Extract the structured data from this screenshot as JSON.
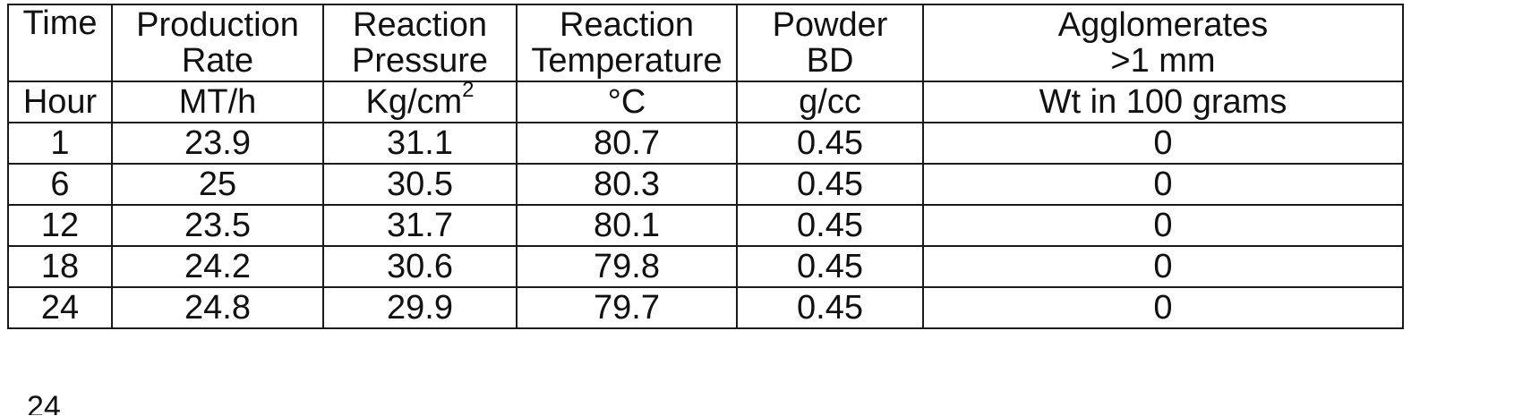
{
  "table": {
    "headers": [
      {
        "line1": "Time",
        "line2": ""
      },
      {
        "line1": "Production",
        "line2": "Rate"
      },
      {
        "line1": "Reaction",
        "line2": "Pressure"
      },
      {
        "line1": "Reaction",
        "line2": "Temperature"
      },
      {
        "line1": "Powder",
        "line2": "BD"
      },
      {
        "line1": "Agglomerates",
        "line2": ">1 mm"
      }
    ],
    "units": [
      {
        "text": "Hour"
      },
      {
        "text": "MT/h"
      },
      {
        "text": "Kg/cm",
        "sup": "2"
      },
      {
        "text": "°C"
      },
      {
        "text": "g/cc"
      },
      {
        "text": "Wt in 100 grams"
      }
    ],
    "rows": [
      [
        "1",
        "23.9",
        "31.1",
        "80.7",
        "0.45",
        "0"
      ],
      [
        "6",
        "25",
        "30.5",
        "80.3",
        "0.45",
        "0"
      ],
      [
        "12",
        "23.5",
        "31.7",
        "80.1",
        "0.45",
        "0"
      ],
      [
        "18",
        "24.2",
        "30.6",
        "79.8",
        "0.45",
        "0"
      ],
      [
        "24",
        "24.8",
        "29.9",
        "79.7",
        "0.45",
        "0"
      ]
    ]
  },
  "footer": {
    "stray_text": "24"
  }
}
